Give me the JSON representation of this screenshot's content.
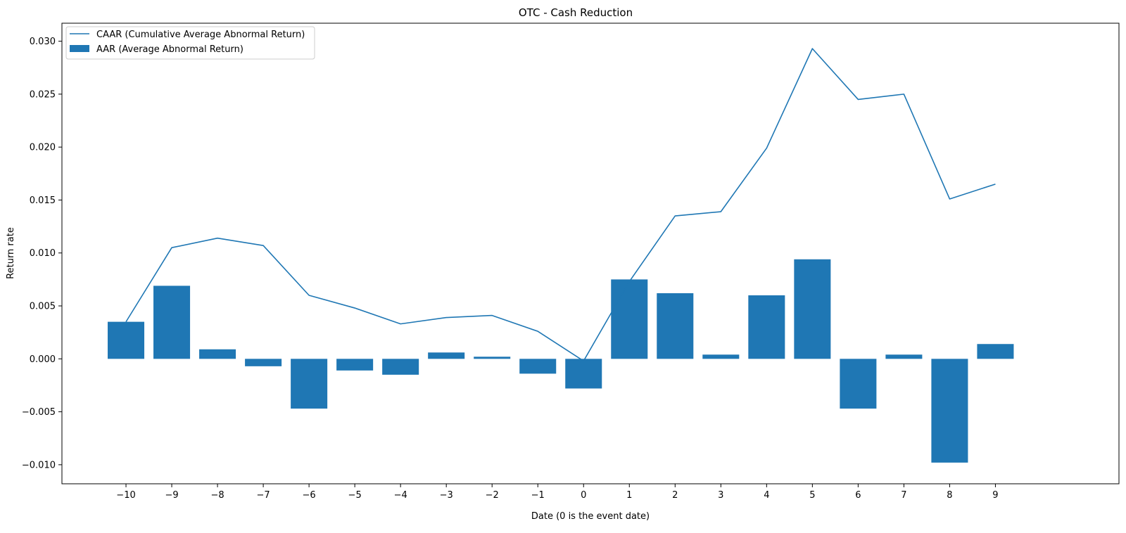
{
  "chart_data": {
    "type": "bar",
    "title": "OTC - Cash Reduction",
    "xlabel": "Date (0 is the event date)",
    "ylabel": "Return rate",
    "x": [
      -10,
      -9,
      -8,
      -7,
      -6,
      -5,
      -4,
      -3,
      -2,
      -1,
      0,
      1,
      2,
      3,
      4,
      5,
      6,
      7,
      8,
      9
    ],
    "x_tick_labels": [
      "−10",
      "−9",
      "−8",
      "−7",
      "−6",
      "−5",
      "−4",
      "−3",
      "−2",
      "−1",
      "0",
      "1",
      "2",
      "3",
      "4",
      "5",
      "6",
      "7",
      "8",
      "9"
    ],
    "xlim": [
      -11.4,
      11.7
    ],
    "ylim": [
      -0.0118,
      0.0317
    ],
    "y_ticks": [
      -0.01,
      -0.005,
      0.0,
      0.005,
      0.01,
      0.015,
      0.02,
      0.025,
      0.03
    ],
    "y_tick_labels": [
      "−0.010",
      "−0.005",
      "0.000",
      "0.005",
      "0.010",
      "0.015",
      "0.020",
      "0.025",
      "0.030"
    ],
    "grid": false,
    "legend_position": "top-left",
    "series": [
      {
        "name": "CAAR (Cumulative Average Abnormal Return)",
        "kind": "line",
        "color": "#1f77b4",
        "values": [
          0.0035,
          0.0105,
          0.0114,
          0.0107,
          0.006,
          0.0048,
          0.0033,
          0.0039,
          0.0041,
          0.0026,
          -0.0002,
          0.0073,
          0.0135,
          0.0139,
          0.0199,
          0.0293,
          0.0245,
          0.025,
          0.0151,
          0.0165
        ]
      },
      {
        "name": "AAR (Average Abnormal Return)",
        "kind": "bar",
        "color": "#1f77b4",
        "values": [
          0.0035,
          0.0069,
          0.0009,
          -0.0007,
          -0.0047,
          -0.0011,
          -0.0015,
          0.0006,
          0.0002,
          -0.0014,
          -0.0028,
          0.0075,
          0.0062,
          0.0004,
          0.006,
          0.0094,
          -0.0047,
          0.0004,
          -0.0098,
          0.0014
        ]
      }
    ]
  }
}
